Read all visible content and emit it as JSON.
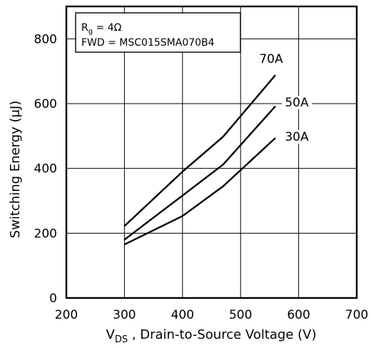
{
  "chart_data": {
    "type": "line",
    "title": "",
    "xlabel_main": "V",
    "xlabel_sub": "DS",
    "xlabel_rest": " , Drain-to-Source Voltage (V)",
    "ylabel": "Switching Energy (μJ)",
    "xlim": [
      200,
      700
    ],
    "ylim": [
      0,
      900
    ],
    "xticks": [
      "200",
      "300",
      "400",
      "500",
      "600",
      "700"
    ],
    "yticks": [
      "0",
      "200",
      "400",
      "600",
      "800"
    ],
    "grid": true,
    "legend_box": {
      "line1_main": "R",
      "line1_sub": "g",
      "line1_rest": " = 4Ω",
      "line2": "FWD = MSC015SMA070B4"
    },
    "series": [
      {
        "name": "70A",
        "x": [
          300,
          400,
          470,
          560
        ],
        "y": [
          222,
          390,
          498,
          688
        ]
      },
      {
        "name": "50A",
        "x": [
          300,
          400,
          470,
          560
        ],
        "y": [
          180,
          316,
          412,
          592
        ]
      },
      {
        "name": "30A",
        "x": [
          300,
          400,
          470,
          560
        ],
        "y": [
          165,
          253,
          345,
          494
        ]
      }
    ]
  }
}
